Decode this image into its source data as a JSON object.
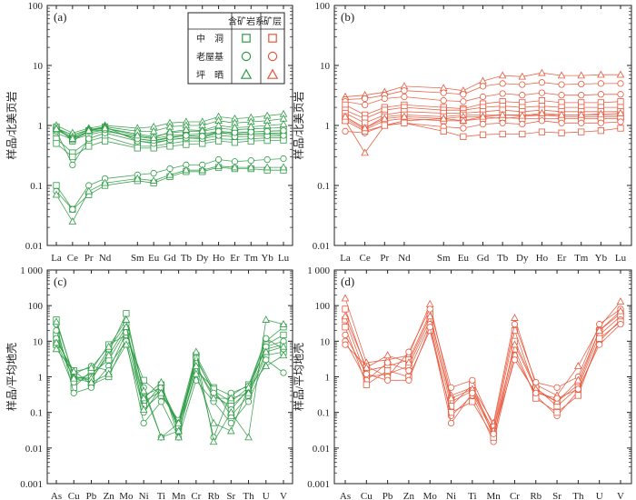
{
  "colors": {
    "green": "#2e9b45",
    "red": "#e8563a",
    "axis": "#222222"
  },
  "legend": {
    "header_system": "含矿岩系",
    "header_ore": "矿层",
    "rows": [
      {
        "label": "中　洞",
        "marker": "square"
      },
      {
        "label": "老屋基",
        "marker": "circle"
      },
      {
        "label": "坪　晒",
        "marker": "triangle"
      }
    ]
  },
  "chart_data": [
    {
      "panel": "(a)",
      "type": "line",
      "yscale": "log",
      "ylim": [
        0.01,
        100
      ],
      "ylabel": "样品/北美页岩",
      "color": "green",
      "categories": [
        "La",
        "Ce",
        "Pr",
        "Nd",
        "Sm",
        "Eu",
        "Gd",
        "Tb",
        "Dy",
        "Ho",
        "Er",
        "Tm",
        "Yb",
        "Lu"
      ],
      "xpos": [
        0,
        1,
        2,
        3,
        5,
        6,
        7,
        8,
        9,
        10,
        11,
        12,
        13,
        14
      ],
      "yticks": [
        "0.01",
        "0.1",
        "1",
        "10",
        "100"
      ],
      "series": [
        {
          "marker": "square",
          "values": [
            0.95,
            0.55,
            0.82,
            0.95,
            0.55,
            0.52,
            0.58,
            0.62,
            0.62,
            0.75,
            0.72,
            0.72,
            0.72,
            0.7
          ]
        },
        {
          "marker": "square",
          "values": [
            0.85,
            0.6,
            0.75,
            0.85,
            0.6,
            0.55,
            0.62,
            0.68,
            0.65,
            0.78,
            0.7,
            0.72,
            0.74,
            0.75
          ]
        },
        {
          "marker": "square",
          "values": [
            0.75,
            0.58,
            0.7,
            0.8,
            0.65,
            0.6,
            0.68,
            0.7,
            0.72,
            0.8,
            0.75,
            0.78,
            0.8,
            0.82
          ]
        },
        {
          "marker": "square",
          "values": [
            0.6,
            0.35,
            0.55,
            0.65,
            0.45,
            0.45,
            0.5,
            0.55,
            0.55,
            0.6,
            0.58,
            0.6,
            0.62,
            0.62
          ]
        },
        {
          "marker": "square",
          "values": [
            0.5,
            0.3,
            0.45,
            0.55,
            0.42,
            0.42,
            0.45,
            0.48,
            0.5,
            0.55,
            0.52,
            0.55,
            0.56,
            0.57
          ]
        },
        {
          "marker": "square",
          "values": [
            0.1,
            0.04,
            0.07,
            0.1,
            0.12,
            0.11,
            0.14,
            0.17,
            0.17,
            0.2,
            0.19,
            0.19,
            0.18,
            0.18
          ]
        },
        {
          "marker": "circle",
          "values": [
            0.9,
            0.7,
            0.85,
            0.9,
            0.72,
            0.65,
            0.75,
            0.8,
            0.8,
            0.9,
            0.85,
            0.88,
            0.9,
            0.92
          ]
        },
        {
          "marker": "circle",
          "values": [
            0.8,
            0.22,
            0.6,
            0.75,
            0.55,
            0.5,
            0.58,
            0.62,
            0.6,
            0.68,
            0.65,
            0.66,
            0.67,
            0.68
          ]
        },
        {
          "marker": "circle",
          "values": [
            0.85,
            0.62,
            0.8,
            0.85,
            0.6,
            0.56,
            0.64,
            0.68,
            0.66,
            0.8,
            0.76,
            0.78,
            0.8,
            0.82
          ]
        },
        {
          "marker": "circle",
          "values": [
            0.08,
            0.04,
            0.1,
            0.13,
            0.15,
            0.16,
            0.19,
            0.22,
            0.22,
            0.27,
            0.25,
            0.26,
            0.27,
            0.28
          ]
        },
        {
          "marker": "triangle",
          "values": [
            1.0,
            0.75,
            0.9,
            1.0,
            0.9,
            0.95,
            1.1,
            1.15,
            1.15,
            1.4,
            1.3,
            1.35,
            1.45,
            1.55
          ]
        },
        {
          "marker": "triangle",
          "values": [
            0.9,
            0.65,
            0.85,
            0.95,
            0.8,
            0.8,
            0.95,
            1.0,
            1.0,
            1.2,
            1.1,
            1.15,
            1.2,
            1.3
          ]
        },
        {
          "marker": "triangle",
          "values": [
            0.07,
            0.025,
            0.08,
            0.11,
            0.13,
            0.12,
            0.15,
            0.18,
            0.18,
            0.21,
            0.2,
            0.2,
            0.2,
            0.2
          ]
        },
        {
          "marker": "triangle",
          "values": [
            0.88,
            0.6,
            0.82,
            0.9,
            0.68,
            0.62,
            0.78,
            0.85,
            0.82,
            1.0,
            0.92,
            0.95,
            1.0,
            1.05
          ]
        }
      ]
    },
    {
      "panel": "(b)",
      "type": "line",
      "yscale": "log",
      "ylim": [
        0.01,
        100
      ],
      "ylabel": "样品/北美页岩",
      "color": "red",
      "categories": [
        "La",
        "Ce",
        "Pr",
        "Nd",
        "Sm",
        "Eu",
        "Gd",
        "Tb",
        "Dy",
        "Ho",
        "Er",
        "Tm",
        "Yb",
        "Lu"
      ],
      "xpos": [
        0,
        1,
        2,
        3,
        5,
        6,
        7,
        8,
        9,
        10,
        11,
        12,
        13,
        14
      ],
      "yticks": [
        "0.01",
        "0.1",
        "1",
        "10",
        "100"
      ],
      "series": [
        {
          "marker": "triangle",
          "values": [
            3.0,
            3.2,
            3.6,
            4.5,
            4.2,
            3.8,
            5.5,
            6.8,
            6.5,
            7.5,
            6.8,
            6.8,
            7.0,
            7.0
          ]
        },
        {
          "marker": "circle",
          "values": [
            2.7,
            2.8,
            3.2,
            3.8,
            3.5,
            3.3,
            4.5,
            5.0,
            4.8,
            5.2,
            4.8,
            4.9,
            5.0,
            5.0
          ]
        },
        {
          "marker": "circle",
          "values": [
            2.5,
            2.2,
            2.8,
            3.0,
            2.6,
            2.5,
            3.0,
            3.4,
            3.2,
            3.5,
            3.2,
            3.2,
            3.3,
            3.3
          ]
        },
        {
          "marker": "square",
          "values": [
            2.2,
            1.5,
            2.0,
            2.2,
            2.0,
            1.9,
            2.3,
            2.5,
            2.4,
            2.6,
            2.4,
            2.4,
            2.4,
            2.5
          ]
        },
        {
          "marker": "square",
          "values": [
            1.8,
            1.3,
            1.8,
            2.0,
            1.8,
            1.8,
            2.0,
            2.1,
            2.0,
            2.1,
            2.0,
            2.0,
            2.0,
            2.0
          ]
        },
        {
          "marker": "square",
          "values": [
            1.6,
            1.1,
            1.5,
            1.7,
            1.6,
            1.6,
            1.7,
            1.8,
            1.7,
            1.8,
            1.7,
            1.7,
            1.7,
            1.7
          ]
        },
        {
          "marker": "square",
          "values": [
            1.4,
            0.9,
            1.4,
            1.5,
            1.4,
            1.5,
            1.5,
            1.5,
            1.5,
            1.5,
            1.5,
            1.5,
            1.5,
            1.5
          ]
        },
        {
          "marker": "triangle",
          "values": [
            1.2,
            0.35,
            1.0,
            1.2,
            1.3,
            1.4,
            1.4,
            1.3,
            1.4,
            1.5,
            1.4,
            1.4,
            1.4,
            1.4
          ]
        },
        {
          "marker": "square",
          "values": [
            1.3,
            0.85,
            1.2,
            1.3,
            1.2,
            1.2,
            1.3,
            1.35,
            1.3,
            1.3,
            1.3,
            1.3,
            1.3,
            1.3
          ]
        },
        {
          "marker": "circle",
          "values": [
            0.8,
            0.75,
            1.0,
            1.1,
            0.95,
            0.9,
            1.05,
            1.1,
            1.05,
            1.2,
            1.1,
            1.1,
            1.1,
            1.15
          ]
        },
        {
          "marker": "square",
          "values": [
            1.2,
            0.8,
            1.0,
            1.1,
            0.8,
            0.65,
            0.7,
            0.72,
            0.72,
            0.78,
            0.75,
            0.78,
            0.82,
            0.9
          ]
        },
        {
          "marker": "triangle",
          "values": [
            1.4,
            0.9,
            1.3,
            1.4,
            1.3,
            1.2,
            1.4,
            1.5,
            1.45,
            1.6,
            1.5,
            1.5,
            1.55,
            1.6
          ]
        }
      ]
    },
    {
      "panel": "(c)",
      "type": "line",
      "yscale": "log",
      "ylim": [
        0.001,
        1000
      ],
      "ylabel": "样品/平均地壳",
      "color": "green",
      "categories": [
        "As",
        "Cu",
        "Pb",
        "Zn",
        "Mo",
        "Ni",
        "Ti",
        "Mn",
        "Cr",
        "Rb",
        "Sr",
        "Th",
        "U",
        "V"
      ],
      "xpos": [
        0,
        1,
        2,
        3,
        4,
        5,
        6,
        7,
        8,
        9,
        10,
        11,
        12,
        13
      ],
      "yticks": [
        "0.001",
        "0.01",
        "0.1",
        "1",
        "10",
        "100",
        "1 000"
      ],
      "series": [
        {
          "marker": "square",
          "values": [
            40,
            1.0,
            0.8,
            5,
            60,
            0.3,
            0.5,
            0.05,
            3,
            0.4,
            0.2,
            0.5,
            10,
            25
          ]
        },
        {
          "marker": "square",
          "values": [
            15,
            0.8,
            1.2,
            3,
            20,
            0.2,
            0.4,
            0.04,
            2,
            0.3,
            0.15,
            0.4,
            8,
            15
          ]
        },
        {
          "marker": "square",
          "values": [
            10,
            1.5,
            0.6,
            1,
            12,
            0.15,
            0.6,
            0.03,
            1.5,
            0.5,
            0.3,
            0.6,
            6,
            8
          ]
        },
        {
          "marker": "square",
          "values": [
            8,
            0.5,
            1.5,
            8,
            15,
            0.8,
            0.3,
            0.06,
            4,
            0.45,
            0.08,
            0.3,
            4,
            5
          ]
        },
        {
          "marker": "circle",
          "values": [
            30,
            0.35,
            0.5,
            2,
            10,
            0.05,
            0.2,
            0.02,
            0.8,
            0.2,
            0.05,
            0.2,
            3,
            1.3
          ]
        },
        {
          "marker": "circle",
          "values": [
            12,
            1.2,
            2,
            1.5,
            18,
            0.5,
            0.02,
            0.05,
            2.5,
            0.02,
            0.35,
            0.55,
            12,
            6
          ]
        },
        {
          "marker": "circle",
          "values": [
            20,
            0.7,
            1.0,
            6,
            30,
            0.1,
            0.5,
            0.04,
            3.5,
            0.35,
            0.12,
            0.45,
            7,
            10
          ]
        },
        {
          "marker": "triangle",
          "values": [
            35,
            1.0,
            0.9,
            4,
            25,
            0.25,
            0.7,
            0.02,
            5,
            0.015,
            0.1,
            0.02,
            40,
            30
          ]
        },
        {
          "marker": "triangle",
          "values": [
            6,
            1.4,
            1.8,
            7,
            40,
            0.4,
            0.02,
            0.03,
            1.2,
            0.05,
            0.03,
            0.5,
            2,
            4
          ]
        },
        {
          "marker": "triangle",
          "values": [
            9,
            0.9,
            0.7,
            1.2,
            8,
            0.12,
            0.35,
            0.05,
            2,
            0.25,
            0.25,
            0.35,
            5,
            7
          ]
        }
      ]
    },
    {
      "panel": "(d)",
      "type": "line",
      "yscale": "log",
      "ylim": [
        0.001,
        1000
      ],
      "ylabel": "样品/平均地壳",
      "color": "red",
      "categories": [
        "As",
        "Cu",
        "Pb",
        "Zn",
        "Mo",
        "Ni",
        "Ti",
        "Mn",
        "Cr",
        "Rb",
        "Sr",
        "Th",
        "U",
        "V"
      ],
      "xpos": [
        0,
        1,
        2,
        3,
        4,
        5,
        6,
        7,
        8,
        9,
        10,
        11,
        12,
        13
      ],
      "yticks": [
        "0.001",
        "0.01",
        "0.1",
        "1",
        "10",
        "100",
        "1 000"
      ],
      "series": [
        {
          "marker": "triangle",
          "values": [
            160,
            2.5,
            3,
            4,
            110,
            0.3,
            0.5,
            0.05,
            45,
            0.6,
            0.3,
            2,
            25,
            130
          ]
        },
        {
          "marker": "square",
          "values": [
            80,
            1.5,
            2,
            3,
            60,
            0.2,
            0.4,
            0.03,
            20,
            0.4,
            0.2,
            0.6,
            20,
            60
          ]
        },
        {
          "marker": "square",
          "values": [
            40,
            1.0,
            1.2,
            2,
            40,
            0.15,
            0.6,
            0.02,
            10,
            0.5,
            0.15,
            0.5,
            15,
            50
          ]
        },
        {
          "marker": "circle",
          "values": [
            10,
            0.8,
            2.5,
            1.5,
            30,
            0.08,
            0.3,
            0.015,
            4,
            0.3,
            0.08,
            0.4,
            10,
            40
          ]
        },
        {
          "marker": "circle",
          "values": [
            8,
            2.0,
            1.0,
            5,
            80,
            0.5,
            0.8,
            0.04,
            30,
            0.7,
            0.5,
            1,
            30,
            80
          ]
        },
        {
          "marker": "square",
          "values": [
            25,
            0.6,
            1.5,
            1,
            20,
            0.1,
            0.2,
            0.02,
            6,
            0.25,
            0.1,
            0.3,
            12,
            35
          ]
        },
        {
          "marker": "triangle",
          "values": [
            50,
            1.8,
            4,
            2.5,
            50,
            0.25,
            0.45,
            0.03,
            8,
            0.45,
            0.2,
            0.8,
            20,
            70
          ]
        },
        {
          "marker": "circle",
          "values": [
            15,
            1.2,
            0.8,
            0.8,
            25,
            0.05,
            0.35,
            0.025,
            3,
            0.35,
            0.25,
            0.45,
            8,
            30
          ]
        }
      ]
    }
  ]
}
